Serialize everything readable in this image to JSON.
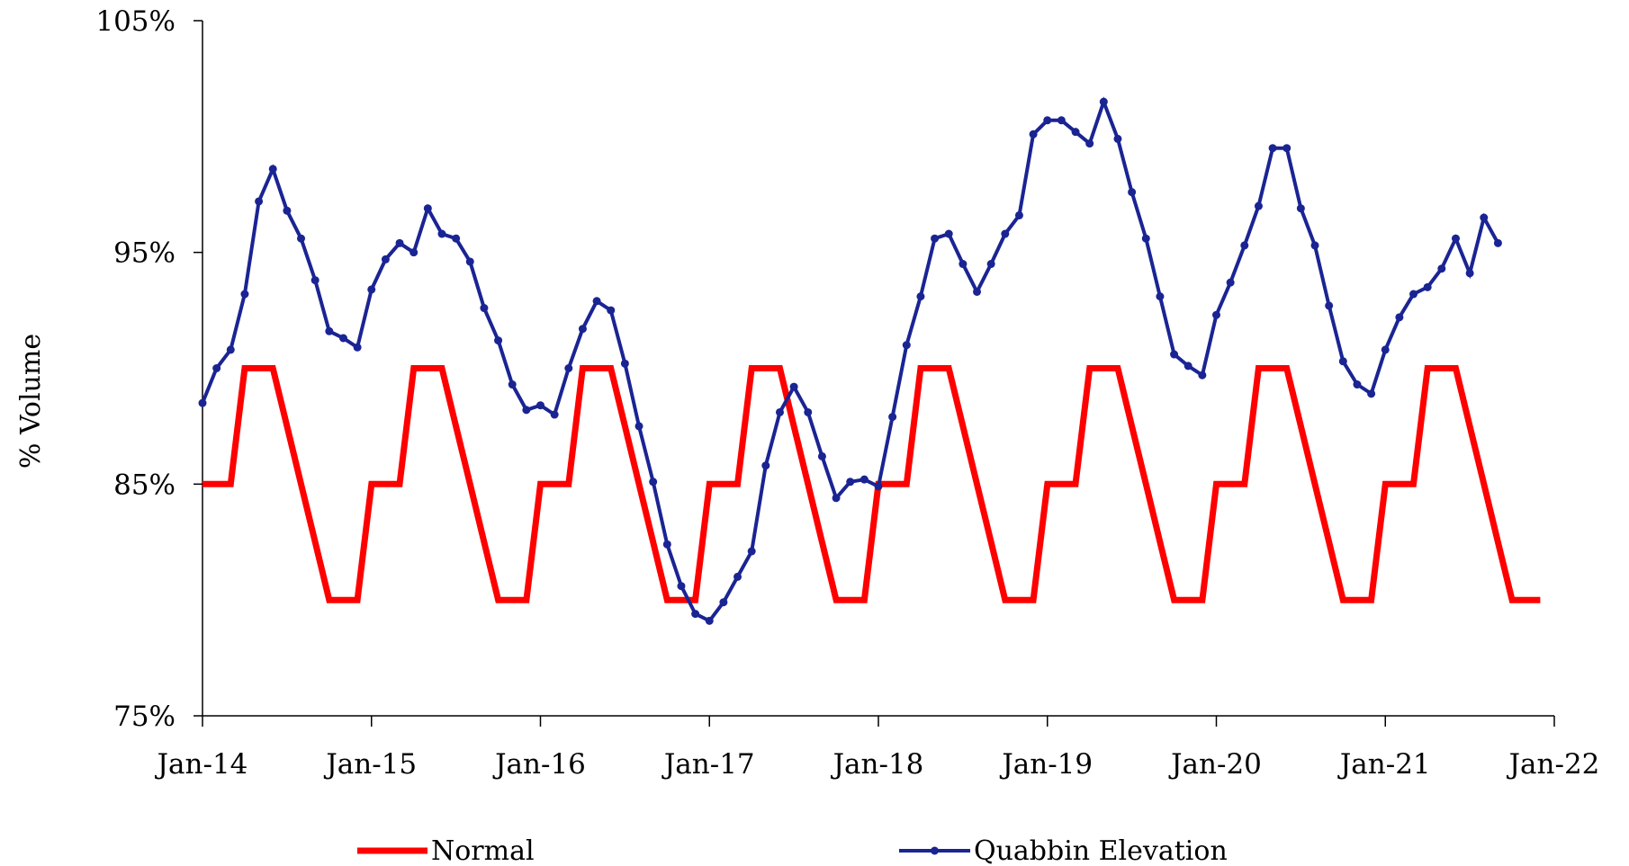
{
  "chart_data": {
    "type": "line",
    "title": "",
    "xlabel": "",
    "ylabel": "% Volume",
    "ylim": [
      75,
      105
    ],
    "yticks": [
      75,
      85,
      95,
      105
    ],
    "ytick_labels": [
      "75%",
      "85%",
      "95%",
      "105%"
    ],
    "xlim": [
      "2014-01",
      "2022-01"
    ],
    "xticks": [
      "2014-01",
      "2015-01",
      "2016-01",
      "2017-01",
      "2018-01",
      "2019-01",
      "2020-01",
      "2021-01",
      "2022-01"
    ],
    "xtick_labels": [
      "Jan-14",
      "Jan-15",
      "Jan-16",
      "Jan-17",
      "Jan-18",
      "Jan-19",
      "Jan-20",
      "Jan-21",
      "Jan-22"
    ],
    "grid": false,
    "legend_position": "bottom",
    "colors": {
      "Normal": "#ff0000",
      "Quabbin Elevation": "#1a2493"
    },
    "series": [
      {
        "name": "Normal",
        "markers": false,
        "points": [
          [
            "2014-01",
            85
          ],
          [
            "2014-03",
            85
          ],
          [
            "2014-04",
            90
          ],
          [
            "2014-06",
            90
          ],
          [
            "2014-07",
            87.5
          ],
          [
            "2014-08",
            85
          ],
          [
            "2014-09",
            82.5
          ],
          [
            "2014-10",
            80
          ],
          [
            "2014-12",
            80
          ],
          [
            "2015-01",
            85
          ],
          [
            "2015-03",
            85
          ],
          [
            "2015-04",
            90
          ],
          [
            "2015-06",
            90
          ],
          [
            "2015-07",
            87.5
          ],
          [
            "2015-08",
            85
          ],
          [
            "2015-09",
            82.5
          ],
          [
            "2015-10",
            80
          ],
          [
            "2015-12",
            80
          ],
          [
            "2016-01",
            85
          ],
          [
            "2016-03",
            85
          ],
          [
            "2016-04",
            90
          ],
          [
            "2016-06",
            90
          ],
          [
            "2016-07",
            87.5
          ],
          [
            "2016-08",
            85
          ],
          [
            "2016-09",
            82.5
          ],
          [
            "2016-10",
            80
          ],
          [
            "2016-12",
            80
          ],
          [
            "2017-01",
            85
          ],
          [
            "2017-03",
            85
          ],
          [
            "2017-04",
            90
          ],
          [
            "2017-06",
            90
          ],
          [
            "2017-07",
            87.5
          ],
          [
            "2017-08",
            85
          ],
          [
            "2017-09",
            82.5
          ],
          [
            "2017-10",
            80
          ],
          [
            "2017-12",
            80
          ],
          [
            "2018-01",
            85
          ],
          [
            "2018-03",
            85
          ],
          [
            "2018-04",
            90
          ],
          [
            "2018-06",
            90
          ],
          [
            "2018-07",
            87.5
          ],
          [
            "2018-08",
            85
          ],
          [
            "2018-09",
            82.5
          ],
          [
            "2018-10",
            80
          ],
          [
            "2018-12",
            80
          ],
          [
            "2019-01",
            85
          ],
          [
            "2019-03",
            85
          ],
          [
            "2019-04",
            90
          ],
          [
            "2019-06",
            90
          ],
          [
            "2019-07",
            87.5
          ],
          [
            "2019-08",
            85
          ],
          [
            "2019-09",
            82.5
          ],
          [
            "2019-10",
            80
          ],
          [
            "2019-12",
            80
          ],
          [
            "2020-01",
            85
          ],
          [
            "2020-03",
            85
          ],
          [
            "2020-04",
            90
          ],
          [
            "2020-06",
            90
          ],
          [
            "2020-07",
            87.5
          ],
          [
            "2020-08",
            85
          ],
          [
            "2020-09",
            82.5
          ],
          [
            "2020-10",
            80
          ],
          [
            "2020-12",
            80
          ],
          [
            "2021-01",
            85
          ],
          [
            "2021-03",
            85
          ],
          [
            "2021-04",
            90
          ],
          [
            "2021-06",
            90
          ],
          [
            "2021-07",
            87.5
          ],
          [
            "2021-08",
            85
          ],
          [
            "2021-09",
            82.5
          ],
          [
            "2021-10",
            80
          ],
          [
            "2021-12",
            80
          ]
        ]
      },
      {
        "name": "Quabbin Elevation",
        "markers": true,
        "points": [
          [
            "2014-01",
            88.5
          ],
          [
            "2014-02",
            90
          ],
          [
            "2014-03",
            90.8
          ],
          [
            "2014-04",
            93.2
          ],
          [
            "2014-05",
            97.2
          ],
          [
            "2014-06",
            98.6
          ],
          [
            "2014-07",
            96.8
          ],
          [
            "2014-08",
            95.6
          ],
          [
            "2014-09",
            93.8
          ],
          [
            "2014-10",
            91.6
          ],
          [
            "2014-11",
            91.3
          ],
          [
            "2014-12",
            90.9
          ],
          [
            "2015-01",
            93.4
          ],
          [
            "2015-02",
            94.7
          ],
          [
            "2015-03",
            95.4
          ],
          [
            "2015-04",
            95
          ],
          [
            "2015-05",
            96.9
          ],
          [
            "2015-06",
            95.8
          ],
          [
            "2015-07",
            95.6
          ],
          [
            "2015-08",
            94.6
          ],
          [
            "2015-09",
            92.6
          ],
          [
            "2015-10",
            91.2
          ],
          [
            "2015-11",
            89.3
          ],
          [
            "2015-12",
            88.2
          ],
          [
            "2016-01",
            88.4
          ],
          [
            "2016-02",
            88
          ],
          [
            "2016-03",
            90
          ],
          [
            "2016-04",
            91.7
          ],
          [
            "2016-05",
            92.9
          ],
          [
            "2016-06",
            92.5
          ],
          [
            "2016-07",
            90.2
          ],
          [
            "2016-08",
            87.5
          ],
          [
            "2016-09",
            85.1
          ],
          [
            "2016-10",
            82.4
          ],
          [
            "2016-11",
            80.6
          ],
          [
            "2016-12",
            79.4
          ],
          [
            "2017-01",
            79.1
          ],
          [
            "2017-02",
            79.9
          ],
          [
            "2017-03",
            81
          ],
          [
            "2017-04",
            82.1
          ],
          [
            "2017-05",
            85.8
          ],
          [
            "2017-06",
            88.1
          ],
          [
            "2017-07",
            89.2
          ],
          [
            "2017-08",
            88.1
          ],
          [
            "2017-09",
            86.2
          ],
          [
            "2017-10",
            84.4
          ],
          [
            "2017-11",
            85.1
          ],
          [
            "2017-12",
            85.2
          ],
          [
            "2018-01",
            84.9
          ],
          [
            "2018-02",
            87.9
          ],
          [
            "2018-03",
            91
          ],
          [
            "2018-04",
            93.1
          ],
          [
            "2018-05",
            95.6
          ],
          [
            "2018-06",
            95.8
          ],
          [
            "2018-07",
            94.5
          ],
          [
            "2018-08",
            93.3
          ],
          [
            "2018-09",
            94.5
          ],
          [
            "2018-10",
            95.8
          ],
          [
            "2018-11",
            96.6
          ],
          [
            "2018-12",
            100.1
          ],
          [
            "2019-01",
            100.7
          ],
          [
            "2019-02",
            100.7
          ],
          [
            "2019-03",
            100.2
          ],
          [
            "2019-04",
            99.7
          ],
          [
            "2019-05",
            101.5
          ],
          [
            "2019-06",
            99.9
          ],
          [
            "2019-07",
            97.6
          ],
          [
            "2019-08",
            95.6
          ],
          [
            "2019-09",
            93.1
          ],
          [
            "2019-10",
            90.6
          ],
          [
            "2019-11",
            90.1
          ],
          [
            "2019-12",
            89.7
          ],
          [
            "2020-01",
            92.3
          ],
          [
            "2020-02",
            93.7
          ],
          [
            "2020-03",
            95.3
          ],
          [
            "2020-04",
            97
          ],
          [
            "2020-05",
            99.5
          ],
          [
            "2020-06",
            99.5
          ],
          [
            "2020-07",
            96.9
          ],
          [
            "2020-08",
            95.3
          ],
          [
            "2020-09",
            92.7
          ],
          [
            "2020-10",
            90.3
          ],
          [
            "2020-11",
            89.3
          ],
          [
            "2020-12",
            88.9
          ],
          [
            "2021-01",
            90.8
          ],
          [
            "2021-02",
            92.2
          ],
          [
            "2021-03",
            93.2
          ],
          [
            "2021-04",
            93.5
          ],
          [
            "2021-05",
            94.3
          ],
          [
            "2021-06",
            95.6
          ],
          [
            "2021-07",
            94.1
          ],
          [
            "2021-08",
            96.5
          ],
          [
            "2021-09",
            95.4
          ]
        ]
      }
    ]
  }
}
